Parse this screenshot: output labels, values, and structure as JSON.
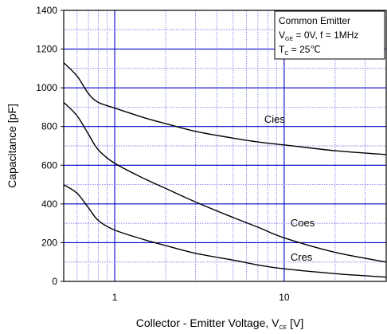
{
  "chart_data": {
    "type": "line",
    "xscale": "log",
    "xlim": [
      0.5,
      40
    ],
    "ylim": [
      0,
      1400
    ],
    "grid": true,
    "xlabel_main": "Collector - Emitter Voltage, V",
    "xlabel_sub": "CE",
    "xlabel_tail": " [V]",
    "ylabel": "Capacitance [pF]",
    "x_ticks": [
      {
        "value": 1,
        "label": "1"
      },
      {
        "value": 10,
        "label": "10"
      }
    ],
    "y_ticks": [
      {
        "value": 0,
        "label": "0"
      },
      {
        "value": 200,
        "label": "200"
      },
      {
        "value": 400,
        "label": "400"
      },
      {
        "value": 600,
        "label": "600"
      },
      {
        "value": 800,
        "label": "800"
      },
      {
        "value": 1000,
        "label": "1000"
      },
      {
        "value": 1200,
        "label": "1200"
      },
      {
        "value": 1400,
        "label": "1400"
      }
    ],
    "series": [
      {
        "name": "Cies",
        "color": "#000000",
        "x": [
          0.5,
          0.6,
          0.7,
          0.8,
          1,
          1.5,
          2,
          3,
          5,
          7,
          10,
          20,
          40
        ],
        "y": [
          1130,
          1060,
          970,
          925,
          895,
          845,
          815,
          775,
          740,
          720,
          705,
          675,
          655
        ]
      },
      {
        "name": "Coes",
        "color": "#000000",
        "x": [
          0.5,
          0.6,
          0.7,
          0.8,
          1,
          1.5,
          2,
          3,
          5,
          7,
          10,
          20,
          40
        ],
        "y": [
          925,
          855,
          760,
          680,
          610,
          530,
          480,
          410,
          330,
          280,
          225,
          150,
          100
        ]
      },
      {
        "name": "Cres",
        "color": "#000000",
        "x": [
          0.5,
          0.6,
          0.7,
          0.8,
          1,
          1.5,
          2,
          3,
          5,
          7,
          10,
          20,
          40
        ],
        "y": [
          500,
          455,
          380,
          315,
          265,
          215,
          185,
          145,
          110,
          85,
          65,
          40,
          22
        ]
      }
    ],
    "curve_labels": [
      {
        "series": "Cies",
        "text": "Cies"
      },
      {
        "series": "Coes",
        "text": "Coes"
      },
      {
        "series": "Cres",
        "text": "Cres"
      }
    ],
    "legend": {
      "placement": "top-right",
      "line1": "Common Emitter",
      "line2_main": "V",
      "line2_sub": "GE",
      "line2_tail": " = 0V, f = 1MHz",
      "line3_main": "T",
      "line3_sub": "C",
      "line3_tail": " = 25℃"
    },
    "colors": {
      "major_grid": "#0000cc",
      "minor_grid": "#5555ee",
      "curve": "#000000",
      "frame": "#000000"
    }
  }
}
